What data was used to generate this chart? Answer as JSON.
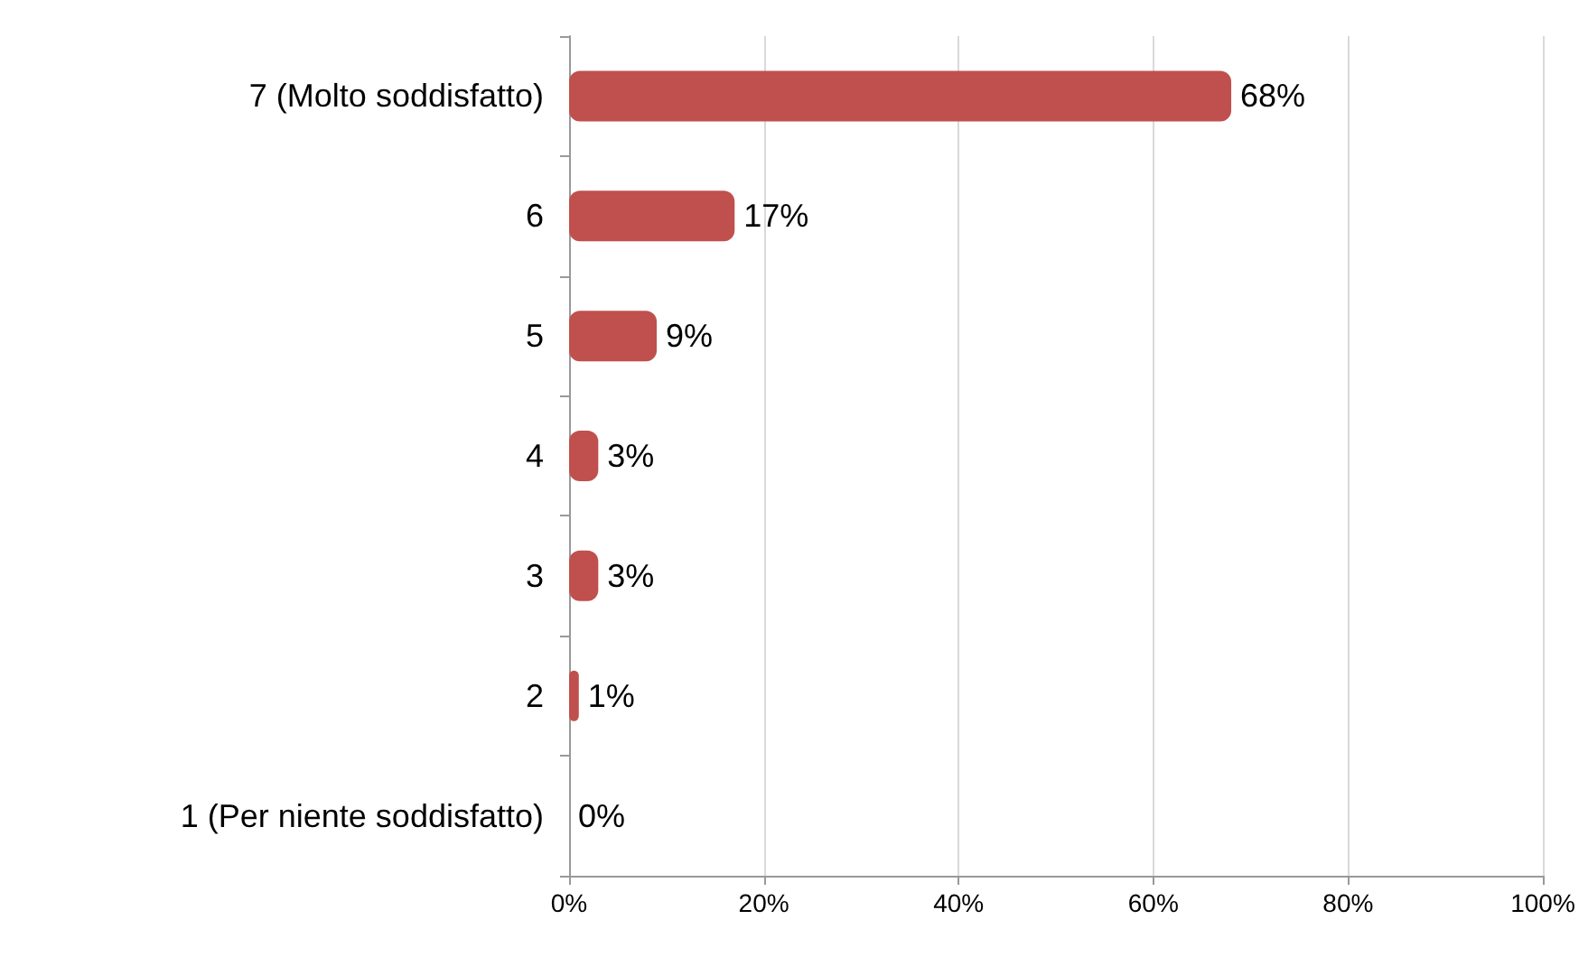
{
  "chart_data": {
    "type": "bar",
    "orientation": "horizontal",
    "categories": [
      "7 (Molto soddisfatto)",
      "6",
      "5",
      "4",
      "3",
      "2",
      "1 (Per niente soddisfatto)"
    ],
    "values": [
      68,
      17,
      9,
      3,
      3,
      1,
      0
    ],
    "value_labels": [
      "68%",
      "17%",
      "9%",
      "3%",
      "3%",
      "1%",
      "0%"
    ],
    "color": "#c0504d",
    "xlim": [
      0,
      100
    ],
    "xticks": [
      {
        "value": 0,
        "label": "0%"
      },
      {
        "value": 20,
        "label": "20%"
      },
      {
        "value": 40,
        "label": "40%"
      },
      {
        "value": 60,
        "label": "60%"
      },
      {
        "value": 80,
        "label": "80%"
      },
      {
        "value": 100,
        "label": "100%"
      }
    ],
    "grid": "x"
  }
}
